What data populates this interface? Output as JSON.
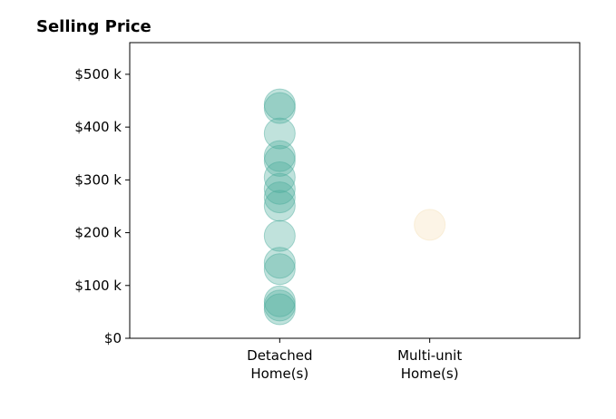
{
  "chart_data": {
    "type": "scatter",
    "title": "Selling Price",
    "xlabel": "",
    "ylabel": "",
    "categories": [
      [
        "Detached",
        "Home(s)"
      ],
      [
        "Multi-unit",
        "Home(s)"
      ]
    ],
    "xlim": [
      -1,
      2
    ],
    "ylim": [
      0,
      560000
    ],
    "yticks": [
      0,
      100000,
      200000,
      300000,
      400000,
      500000
    ],
    "ytick_labels": [
      "$0",
      "$100 k",
      "$200 k",
      "$300 k",
      "$400 k",
      "$500 k"
    ],
    "grid": false,
    "series": [
      {
        "category_index": 0,
        "color": "#4aab9c",
        "values": [
          443000,
          436000,
          388000,
          345000,
          336000,
          305000,
          283000,
          267000,
          251000,
          194000,
          143000,
          131000,
          70000,
          62000,
          55000
        ]
      },
      {
        "category_index": 1,
        "color": "#f5dfb6",
        "values": [
          215000
        ]
      }
    ]
  }
}
